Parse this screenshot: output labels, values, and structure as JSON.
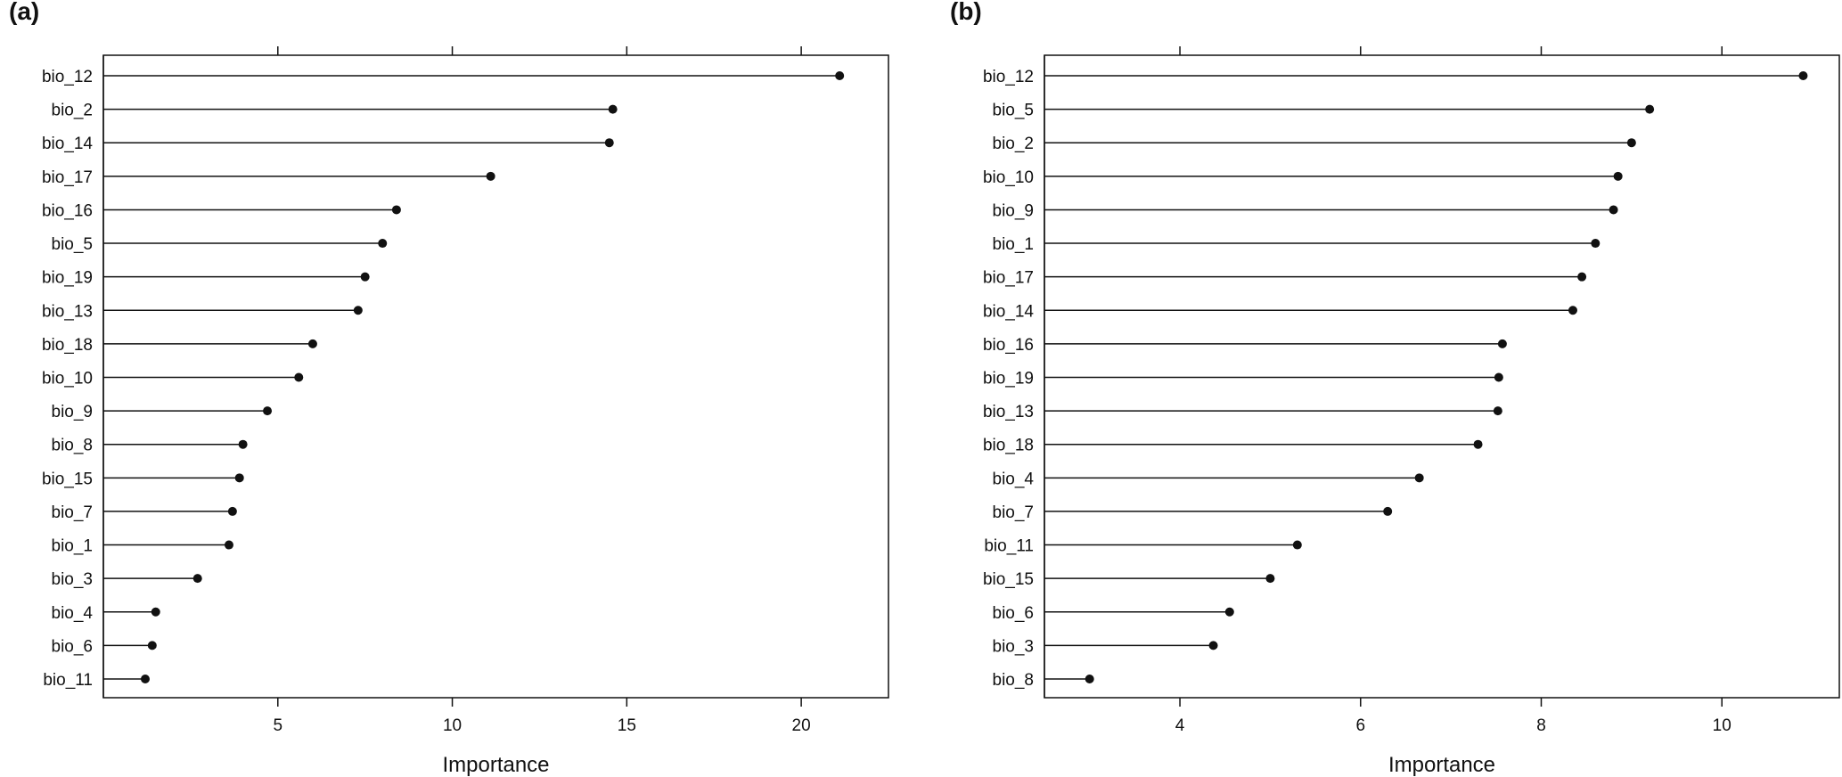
{
  "chart_data": [
    {
      "type": "lollipop",
      "panel_label": "(a)",
      "xlabel": "Importance",
      "xlim": [
        0,
        22.5
      ],
      "xticks": [
        5,
        10,
        15,
        20
      ],
      "grid": false,
      "categories": [
        "bio_12",
        "bio_2",
        "bio_14",
        "bio_17",
        "bio_16",
        "bio_5",
        "bio_19",
        "bio_13",
        "bio_18",
        "bio_10",
        "bio_9",
        "bio_8",
        "bio_15",
        "bio_7",
        "bio_1",
        "bio_3",
        "bio_4",
        "bio_6",
        "bio_11"
      ],
      "values": [
        21.1,
        14.6,
        14.5,
        11.1,
        8.4,
        8.0,
        7.5,
        7.3,
        6.0,
        5.6,
        4.7,
        4.0,
        3.9,
        3.7,
        3.6,
        2.7,
        1.5,
        1.4,
        1.2
      ]
    },
    {
      "type": "lollipop",
      "panel_label": "(b)",
      "xlabel": "Importance",
      "xlim": [
        2.5,
        11.3
      ],
      "xticks": [
        4,
        6,
        8,
        10
      ],
      "grid": false,
      "categories": [
        "bio_12",
        "bio_5",
        "bio_2",
        "bio_10",
        "bio_9",
        "bio_1",
        "bio_17",
        "bio_14",
        "bio_16",
        "bio_19",
        "bio_13",
        "bio_18",
        "bio_4",
        "bio_7",
        "bio_11",
        "bio_15",
        "bio_6",
        "bio_3",
        "bio_8"
      ],
      "values": [
        10.9,
        9.2,
        9.0,
        8.85,
        8.8,
        8.6,
        8.45,
        8.35,
        7.57,
        7.53,
        7.52,
        7.3,
        6.65,
        6.3,
        5.3,
        5.0,
        4.55,
        4.37,
        3.0
      ]
    }
  ]
}
